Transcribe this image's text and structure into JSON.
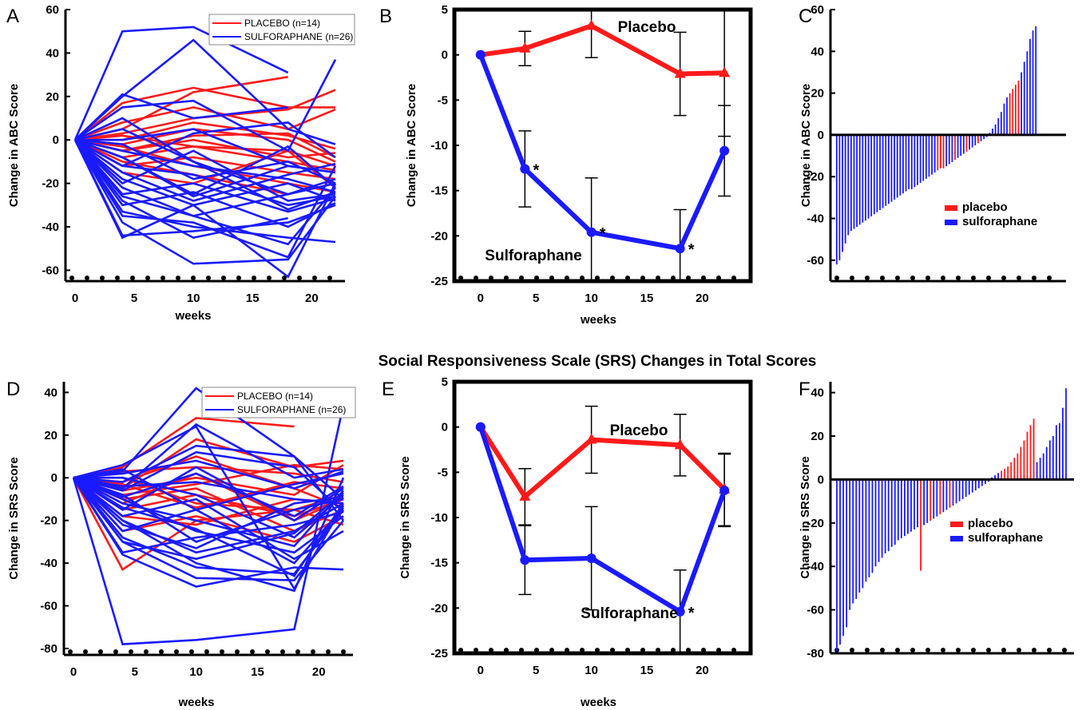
{
  "figure_title": "Social Responsiveness Scale (SRS) Changes in Total Scores",
  "colors": {
    "placebo": "#ff1a1a",
    "sulforaphane": "#1a1aff"
  },
  "chart_data": [
    {
      "panel": "A",
      "type": "line",
      "ylabel": "Change in ABC Score",
      "xlabel": "weeks",
      "xlim": [
        0,
        22
      ],
      "ylim": [
        -65,
        60
      ],
      "xticks": [
        0,
        5,
        10,
        15,
        20
      ],
      "yticks": [
        60,
        40,
        20,
        0,
        -20,
        -40,
        -60
      ],
      "legend": [
        "PLACEBO (n=14)",
        "SULFORAPHANE (n=26)"
      ],
      "x": [
        0,
        4,
        10,
        18,
        22
      ],
      "placebo": [
        [
          0,
          17,
          24,
          15,
          15
        ],
        [
          0,
          5,
          22,
          29,
          null
        ],
        [
          0,
          8,
          15,
          5,
          14
        ],
        [
          0,
          3,
          10,
          14,
          23
        ],
        [
          0,
          -2,
          5,
          0,
          -10
        ],
        [
          0,
          -5,
          2,
          3,
          -8
        ],
        [
          0,
          2,
          -3,
          -5,
          -12
        ],
        [
          0,
          -8,
          -3,
          -10,
          -14
        ],
        [
          0,
          -12,
          -8,
          -15,
          -18
        ],
        [
          0,
          -3,
          -12,
          -20,
          -24
        ],
        [
          0,
          -10,
          -16,
          -25,
          -20
        ],
        [
          0,
          -5,
          0,
          -8,
          -6
        ],
        [
          0,
          0,
          8,
          2,
          -4
        ],
        [
          0,
          -15,
          -20,
          -5,
          -22
        ]
      ],
      "sulforaphane": [
        [
          0,
          50,
          52,
          31,
          null
        ],
        [
          0,
          21,
          10,
          15,
          null
        ],
        [
          0,
          20,
          46,
          5,
          -2
        ],
        [
          0,
          15,
          18,
          -5,
          37
        ],
        [
          0,
          10,
          -10,
          -25,
          -20
        ],
        [
          0,
          0,
          5,
          -12,
          -15
        ],
        [
          0,
          -5,
          -12,
          -18,
          -24
        ],
        [
          0,
          -8,
          -25,
          -3,
          -22
        ],
        [
          0,
          -12,
          -16,
          -30,
          -26
        ],
        [
          0,
          -15,
          -28,
          -16,
          -11
        ],
        [
          0,
          -18,
          -30,
          -20,
          -28
        ],
        [
          0,
          -22,
          -35,
          -25,
          -18
        ],
        [
          0,
          -25,
          -20,
          -33,
          -27
        ],
        [
          0,
          -28,
          -45,
          -36,
          null
        ],
        [
          0,
          -30,
          -24,
          -40,
          -29
        ],
        [
          0,
          -33,
          -40,
          -45,
          -47
        ],
        [
          0,
          -35,
          -38,
          -54,
          -12
        ],
        [
          0,
          -38,
          -57,
          -55,
          -26
        ],
        [
          0,
          -45,
          -30,
          -63,
          -20
        ],
        [
          0,
          -44,
          -42,
          -38,
          -30
        ],
        [
          0,
          -12,
          3,
          8,
          -8
        ],
        [
          0,
          -2,
          -18,
          -10,
          -20
        ],
        [
          0,
          5,
          -10,
          -32,
          -24
        ],
        [
          0,
          -20,
          -5,
          -28,
          -25
        ],
        [
          0,
          -8,
          -26,
          -12,
          -15
        ],
        [
          0,
          -26,
          -35,
          -48,
          -22
        ]
      ]
    },
    {
      "panel": "B",
      "type": "line",
      "ylabel": "Change in ABC Score",
      "xlabel": "weeks",
      "xlim": [
        -1.5,
        23.5
      ],
      "ylim": [
        -25,
        5
      ],
      "xticks": [
        0,
        5,
        10,
        15,
        20
      ],
      "yticks": [
        5,
        0,
        -5,
        -10,
        -15,
        -20,
        -25
      ],
      "series": [
        {
          "name": "Placebo",
          "x": [
            0,
            4,
            10,
            18,
            22
          ],
          "values": [
            0,
            0.7,
            3.2,
            -2.1,
            -2.0
          ],
          "err": [
            0,
            1.9,
            3.5,
            4.6,
            7.0
          ]
        },
        {
          "name": "Sulforaphane",
          "x": [
            0,
            4,
            10,
            18,
            22
          ],
          "values": [
            0,
            -12.6,
            -19.6,
            -21.4,
            -10.6
          ],
          "err": [
            0,
            4.2,
            6.0,
            4.3,
            5.0
          ]
        }
      ],
      "stars_at": [
        4,
        10,
        18
      ],
      "star": "*"
    },
    {
      "panel": "C",
      "type": "bar",
      "ylabel": "Change in ABC Score",
      "ylim": [
        -70,
        60
      ],
      "yticks": [
        60,
        40,
        20,
        0,
        -20,
        -40,
        -60
      ],
      "legend": [
        "placebo",
        "sulforaphane"
      ],
      "values": [
        -62,
        -60,
        -56,
        -52,
        -48,
        -46,
        -45,
        -44,
        -43,
        -42,
        -41,
        -40,
        -39,
        -38,
        -37,
        -36,
        -35,
        -34,
        -33,
        -32,
        -31,
        -30,
        -29,
        -28,
        -27,
        -26,
        -26,
        -25,
        -24,
        -23,
        -22,
        -21,
        -20,
        -19,
        -18,
        -17,
        -16,
        -16,
        -15,
        -14,
        -13,
        -12,
        -11,
        -10,
        -9,
        -8,
        -7,
        -6,
        -5,
        -4,
        -3,
        -2,
        -1,
        1,
        3,
        5,
        8,
        11,
        15,
        18,
        20,
        22,
        24,
        26,
        30,
        35,
        40,
        46,
        50,
        52
      ],
      "groups": [
        "s",
        "s",
        "s",
        "s",
        "s",
        "s",
        "s",
        "s",
        "s",
        "s",
        "s",
        "s",
        "s",
        "s",
        "s",
        "s",
        "s",
        "s",
        "s",
        "s",
        "s",
        "s",
        "s",
        "s",
        "s",
        "s",
        "s",
        "s",
        "s",
        "s",
        "s",
        "s",
        "s",
        "s",
        "s",
        "p",
        "p",
        "p",
        "s",
        "s",
        "s",
        "p",
        "s",
        "s",
        "s",
        "p",
        "s",
        "s",
        "s",
        "p",
        "s",
        "s",
        "s",
        "s",
        "s",
        "s",
        "s",
        "s",
        "s",
        "s",
        "p",
        "p",
        "p",
        "p",
        "s",
        "s",
        "s",
        "s",
        "s",
        "s"
      ]
    },
    {
      "panel": "D",
      "type": "line",
      "ylabel": "Change in SRS Score",
      "xlabel": "weeks",
      "xlim": [
        0,
        22
      ],
      "ylim": [
        -83,
        45
      ],
      "xticks": [
        0,
        5,
        10,
        15,
        20
      ],
      "yticks": [
        40,
        20,
        0,
        -20,
        -40,
        -60,
        -80
      ],
      "legend": [
        "PLACEBO (n=14)",
        "SULFORAPHANE (n=26)"
      ],
      "x": [
        0,
        4,
        10,
        18,
        22
      ],
      "placebo": [
        [
          0,
          -43,
          -20,
          -15,
          -22
        ],
        [
          0,
          5,
          28,
          24,
          null
        ],
        [
          0,
          -5,
          18,
          5,
          8
        ],
        [
          0,
          -12,
          2,
          -20,
          -10
        ],
        [
          0,
          -8,
          -3,
          6,
          4
        ],
        [
          0,
          -2,
          10,
          -5,
          -14
        ],
        [
          0,
          0,
          -12,
          -15,
          -8
        ],
        [
          0,
          -18,
          -22,
          -10,
          -12
        ],
        [
          0,
          -10,
          -5,
          -25,
          -15
        ],
        [
          0,
          3,
          5,
          2,
          -2
        ],
        [
          0,
          -25,
          -18,
          -30,
          -18
        ],
        [
          0,
          -6,
          0,
          -8,
          6
        ],
        [
          0,
          -15,
          -8,
          -18,
          -10
        ],
        [
          0,
          -3,
          -14,
          -2,
          -5
        ]
      ],
      "sulforaphane": [
        [
          0,
          -78,
          -76,
          -71,
          34
        ],
        [
          0,
          3,
          42,
          10,
          -10
        ],
        [
          0,
          -5,
          25,
          0,
          4
        ],
        [
          0,
          6,
          24,
          -52,
          -13
        ],
        [
          0,
          -36,
          -51,
          -42,
          -43
        ],
        [
          0,
          -30,
          -47,
          -48,
          -20
        ],
        [
          0,
          -20,
          -35,
          -25,
          -12
        ],
        [
          0,
          -25,
          -15,
          -40,
          -14
        ],
        [
          0,
          -10,
          -25,
          -35,
          -18
        ],
        [
          0,
          -15,
          5,
          -20,
          -5
        ],
        [
          0,
          -2,
          15,
          10,
          -20
        ],
        [
          0,
          0,
          -8,
          -28,
          -8
        ],
        [
          0,
          -20,
          -40,
          -53,
          0
        ],
        [
          0,
          -8,
          -30,
          -15,
          -10
        ],
        [
          0,
          -28,
          -42,
          -45,
          -15
        ],
        [
          0,
          2,
          8,
          -5,
          3
        ],
        [
          0,
          -12,
          -20,
          -32,
          -6
        ],
        [
          0,
          -4,
          -2,
          -10,
          -12
        ],
        [
          0,
          -35,
          -28,
          -22,
          -16
        ],
        [
          0,
          -18,
          -10,
          -38,
          -25
        ],
        [
          0,
          4,
          -15,
          -3,
          2
        ],
        [
          0,
          -22,
          -33,
          -12,
          -9
        ],
        [
          0,
          -6,
          12,
          5,
          -16
        ],
        [
          0,
          -14,
          -24,
          -46,
          -12
        ],
        [
          0,
          -30,
          -38,
          -26,
          -7
        ],
        [
          0,
          -9,
          2,
          -18,
          -4
        ]
      ]
    },
    {
      "panel": "E",
      "type": "line",
      "ylabel": "Change in SRS Score",
      "xlabel": "weeks",
      "xlim": [
        -1.5,
        23.5
      ],
      "ylim": [
        -25,
        5
      ],
      "xticks": [
        0,
        5,
        10,
        15,
        20
      ],
      "yticks": [
        5,
        0,
        -5,
        -10,
        -15,
        -20,
        -25
      ],
      "series": [
        {
          "name": "Placebo",
          "x": [
            0,
            4,
            10,
            18,
            22
          ],
          "values": [
            0,
            -7.7,
            -1.4,
            -2.0,
            -6.9
          ],
          "err": [
            0,
            3.1,
            3.7,
            3.4,
            4.0
          ]
        },
        {
          "name": "Sulforaphane",
          "x": [
            0,
            4,
            10,
            18,
            22
          ],
          "values": [
            0,
            -14.7,
            -14.5,
            -20.4,
            -7.0
          ],
          "err": [
            0,
            3.8,
            5.7,
            4.6,
            4.0
          ]
        }
      ],
      "stars_at": [
        18
      ],
      "star": "*"
    },
    {
      "panel": "F",
      "type": "bar",
      "ylabel": "Change in SRS Score",
      "ylim": [
        -80,
        45
      ],
      "yticks": [
        40,
        20,
        0,
        -20,
        -40,
        -60,
        -80
      ],
      "legend": [
        "placebo",
        "sulforaphane"
      ],
      "values": [
        -79,
        -76,
        -72,
        -68,
        -60,
        -57,
        -55,
        -52,
        -50,
        -47,
        -45,
        -43,
        -40,
        -38,
        -36,
        -34,
        -33,
        -31,
        -30,
        -28,
        -27,
        -26,
        -25,
        -24,
        -23,
        -22,
        -42,
        -21,
        -20,
        -19,
        -18,
        -17,
        -16,
        -15,
        -14,
        -13,
        -12,
        -11,
        -10,
        -9,
        -8,
        -7,
        -6,
        -5,
        -4,
        -3,
        -2,
        -1,
        1,
        2,
        3,
        4,
        5,
        6,
        8,
        10,
        12,
        15,
        18,
        22,
        25,
        28,
        8,
        10,
        12,
        15,
        18,
        20,
        25,
        26,
        33,
        42
      ],
      "groups": [
        "s",
        "s",
        "s",
        "s",
        "s",
        "s",
        "s",
        "s",
        "s",
        "s",
        "s",
        "s",
        "s",
        "s",
        "s",
        "s",
        "s",
        "s",
        "s",
        "s",
        "s",
        "s",
        "s",
        "s",
        "s",
        "s",
        "p",
        "s",
        "s",
        "p",
        "s",
        "s",
        "p",
        "s",
        "s",
        "p",
        "s",
        "s",
        "s",
        "s",
        "s",
        "s",
        "s",
        "s",
        "s",
        "s",
        "s",
        "s",
        "s",
        "s",
        "s",
        "p",
        "p",
        "p",
        "p",
        "p",
        "p",
        "p",
        "p",
        "p",
        "p",
        "p",
        "s",
        "s",
        "s",
        "s",
        "s",
        "s",
        "s",
        "s",
        "s",
        "s"
      ]
    }
  ]
}
